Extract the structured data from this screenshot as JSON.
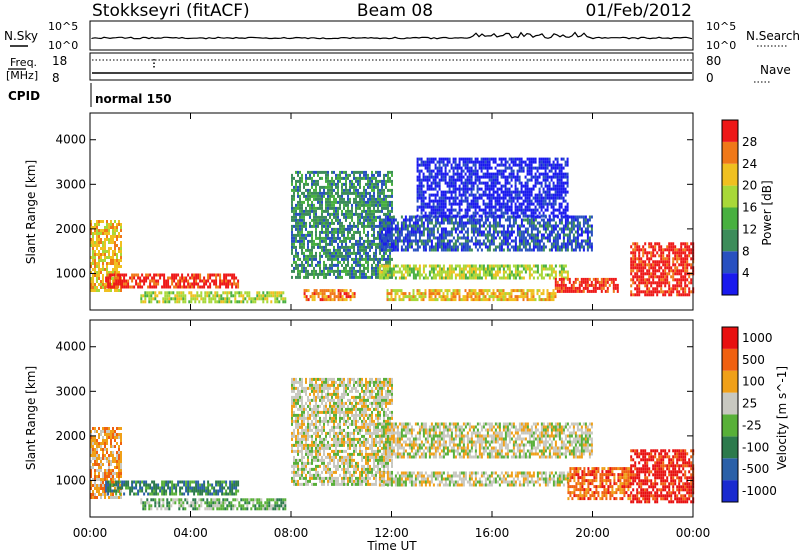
{
  "header": {
    "station": "Stokkseyri (fitACF)",
    "beam": "Beam 08",
    "date": "01/Feb/2012"
  },
  "sky_panel": {
    "left_label": "N.Sky",
    "right_label": "N.Search",
    "left_ticks": [
      "10^5",
      "10^0"
    ],
    "right_ticks": [
      "10^5",
      "10^0"
    ]
  },
  "freq_panel": {
    "left_label_1": "Freq.",
    "left_label_2": "[MHz]",
    "right_label": "Nave",
    "left_ticks": [
      "18",
      "8"
    ],
    "right_ticks": [
      "80",
      "0"
    ]
  },
  "cpid": {
    "label": "CPID",
    "mode": "normal 150"
  },
  "x_axis": {
    "label": "Time UT",
    "ticks": [
      "00:00",
      "04:00",
      "08:00",
      "12:00",
      "16:00",
      "20:00",
      "00:00"
    ]
  },
  "chart_data": [
    {
      "type": "heatmap",
      "panel": "power",
      "ylabel": "Slant Range [km]",
      "yticks": [
        1000,
        2000,
        3000,
        4000
      ],
      "ylim": [
        180,
        4600
      ],
      "xlim_hours": [
        0,
        24
      ],
      "colorbar": {
        "label": "Power [dB]",
        "tick_labels": [
          "4",
          "8",
          "12",
          "16",
          "20",
          "24",
          "28"
        ],
        "colors": [
          "#1a1aee",
          "#2850c0",
          "#3c8c5a",
          "#48b040",
          "#a8d838",
          "#f0c020",
          "#f07818",
          "#ee1818"
        ]
      },
      "regions": [
        {
          "name": "early-evening echoes",
          "t0": 0.0,
          "t1": 1.2,
          "r0": 600,
          "r1": 2200,
          "level": 5
        },
        {
          "name": "early high-power band",
          "t0": 0.6,
          "t1": 5.9,
          "r0": 700,
          "r1": 1000,
          "level": 7
        },
        {
          "name": "low-range band",
          "t0": 2.0,
          "t1": 7.8,
          "r0": 350,
          "r1": 600,
          "level": 4
        },
        {
          "name": "arc from 08 to 12 UT",
          "t0": 8.0,
          "t1": 12.0,
          "r0": 900,
          "r1": 3300,
          "level": 2
        },
        {
          "name": "near-range band 09-10 UT",
          "t0": 8.5,
          "t1": 10.5,
          "r0": 400,
          "r1": 650,
          "level": 6
        },
        {
          "name": "mid-range band",
          "t0": 11.5,
          "t1": 19.0,
          "r0": 900,
          "r1": 1200,
          "level": 4
        },
        {
          "name": "near-range band 12-18 UT",
          "t0": 11.8,
          "t1": 18.5,
          "r0": 400,
          "r1": 650,
          "level": 5
        },
        {
          "name": "upper band 12-20 UT",
          "t0": 11.5,
          "t1": 20.0,
          "r0": 1500,
          "r1": 2300,
          "level": 1
        },
        {
          "name": "scattered far echoes",
          "t0": 13.0,
          "t1": 19.0,
          "r0": 2300,
          "r1": 3600,
          "level": 0
        },
        {
          "name": "evening high-power band",
          "t0": 18.5,
          "t1": 21.0,
          "r0": 600,
          "r1": 900,
          "level": 7
        },
        {
          "name": "late evening echoes",
          "t0": 21.5,
          "t1": 24.0,
          "r0": 500,
          "r1": 1700,
          "level": 7
        }
      ]
    },
    {
      "type": "heatmap",
      "panel": "velocity",
      "ylabel": "Slant Range [km]",
      "yticks": [
        1000,
        2000,
        3000,
        4000
      ],
      "ylim": [
        180,
        4600
      ],
      "xlim_hours": [
        0,
        24
      ],
      "colorbar": {
        "label": "Velocity [m s^-1]",
        "tick_labels": [
          "1000",
          "500",
          "100",
          "25",
          "-25",
          "-100",
          "-500",
          "-1000"
        ],
        "colors": [
          "#1a2ad0",
          "#2a60a8",
          "#2c7a4c",
          "#58b038",
          "#c8c8c0",
          "#f0a018",
          "#f06010",
          "#e81010"
        ]
      },
      "regions": [
        {
          "name": "early-evening echoes",
          "t0": 0.0,
          "t1": 1.2,
          "r0": 600,
          "r1": 2200,
          "level": 5
        },
        {
          "name": "early band",
          "t0": 0.6,
          "t1": 5.9,
          "r0": 700,
          "r1": 1000,
          "level": 2
        },
        {
          "name": "low-range band",
          "t0": 2.0,
          "t1": 7.8,
          "r0": 350,
          "r1": 600,
          "level": 3
        },
        {
          "name": "arc from 08 to 12 UT",
          "t0": 8.0,
          "t1": 12.0,
          "r0": 900,
          "r1": 3300,
          "level": 4
        },
        {
          "name": "mid-range band",
          "t0": 11.5,
          "t1": 19.0,
          "r0": 900,
          "r1": 1200,
          "level": 4
        },
        {
          "name": "upper band 12-20 UT",
          "t0": 11.5,
          "t1": 20.0,
          "r0": 1500,
          "r1": 2300,
          "level": 4
        },
        {
          "name": "evening band",
          "t0": 19.0,
          "t1": 21.5,
          "r0": 600,
          "r1": 1300,
          "level": 6
        },
        {
          "name": "late evening echoes",
          "t0": 21.5,
          "t1": 24.0,
          "r0": 500,
          "r1": 1700,
          "level": 7
        }
      ]
    }
  ]
}
